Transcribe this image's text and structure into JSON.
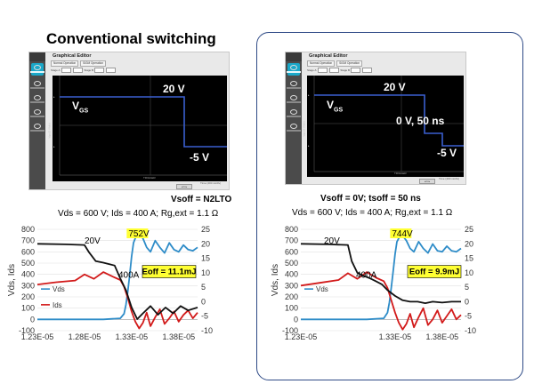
{
  "heading": "Conventional switching",
  "editor": {
    "title": "Graphical Editor",
    "tabs": [
      "Normal Operation",
      "SiGM Operation"
    ],
    "stage_a": "Stage A",
    "stage_b": "Stage B",
    "x_label": "Time (400 ns/div)",
    "y_label": "Vgs (5 V/div)",
    "trigger": "TRIGGER"
  },
  "left": {
    "labels": {
      "high": "20 V",
      "vgs": "V",
      "vgs_sub": "GS",
      "low": "-5 V"
    },
    "desc_line1": "Vsoff = N2LTO",
    "desc_line2": "Vds = 600 V; Ids = 400 A; Rg,ext = 1.1 Ω"
  },
  "right": {
    "labels": {
      "high": "20 V",
      "vgs": "V",
      "vgs_sub": "GS",
      "mid": "0 V, 50 ns",
      "low": "-5 V"
    },
    "desc_line1": "Vsoff = 0V; tsoff = 50 ns",
    "desc_line2": "Vds = 600 V; Ids = 400 A; Rg,ext = 1.1 Ω"
  },
  "colors": {
    "vds": "#2e8cc8",
    "ids": "#d21a1a",
    "vgs": "#111111",
    "highlight": "#ffff33",
    "scope_blue": "#3a5fd0"
  },
  "chart_data": [
    {
      "type": "line",
      "ylabel": "Vds, Ids",
      "y_ticks": [
        800,
        700,
        600,
        500,
        400,
        300,
        200,
        100,
        0,
        -100
      ],
      "y2_ticks": [
        25,
        20,
        15,
        10,
        5,
        0,
        -5,
        -10
      ],
      "x_ticks": [
        "1.23E-05",
        "1.28E-05",
        "1.33E-05",
        "1.38E-05"
      ],
      "ylim": [
        -100,
        800
      ],
      "y2lim": [
        -10,
        25
      ],
      "xlim": [
        1.23e-05,
        1.4e-05
      ],
      "annotations": {
        "vgs_high": "20V",
        "ids": "400A",
        "peak": "752V",
        "energy": "Eoff = 11.1mJ"
      },
      "legend": [
        "Vds",
        "Ids"
      ],
      "series": [
        {
          "name": "Vds",
          "x": [
            1.23e-05,
            1.3e-05,
            1.318e-05,
            1.322e-05,
            1.324e-05,
            1.326e-05,
            1.328e-05,
            1.33e-05,
            1.332e-05,
            1.335e-05,
            1.338e-05,
            1.342e-05,
            1.346e-05,
            1.35e-05,
            1.355e-05,
            1.36e-05,
            1.365e-05,
            1.37e-05,
            1.375e-05,
            1.38e-05,
            1.385e-05,
            1.39e-05,
            1.395e-05,
            1.4e-05
          ],
          "y": [
            0,
            0,
            10,
            50,
            130,
            250,
            400,
            560,
            680,
            745,
            752,
            720,
            640,
            600,
            700,
            640,
            590,
            680,
            620,
            600,
            660,
            620,
            610,
            640
          ]
        },
        {
          "name": "Ids",
          "x": [
            1.23e-05,
            1.25e-05,
            1.27e-05,
            1.28e-05,
            1.29e-05,
            1.3e-05,
            1.31e-05,
            1.318e-05,
            1.322e-05,
            1.326e-05,
            1.33e-05,
            1.334e-05,
            1.338e-05,
            1.342e-05,
            1.346e-05,
            1.35e-05,
            1.355e-05,
            1.36e-05,
            1.365e-05,
            1.37e-05,
            1.375e-05,
            1.38e-05,
            1.385e-05,
            1.39e-05,
            1.395e-05,
            1.4e-05
          ],
          "y": [
            310,
            330,
            345,
            400,
            360,
            420,
            380,
            350,
            290,
            190,
            70,
            -20,
            -80,
            -30,
            60,
            -60,
            20,
            90,
            -40,
            10,
            70,
            -20,
            40,
            80,
            10,
            60
          ]
        },
        {
          "name": "Vgs",
          "axis": "right",
          "x": [
            1.23e-05,
            1.26e-05,
            1.28e-05,
            1.285e-05,
            1.292e-05,
            1.3e-05,
            1.306e-05,
            1.312e-05,
            1.318e-05,
            1.324e-05,
            1.33e-05,
            1.336e-05,
            1.342e-05,
            1.35e-05,
            1.358e-05,
            1.366e-05,
            1.374e-05,
            1.382e-05,
            1.39e-05,
            1.4e-05
          ],
          "y": [
            20,
            19.8,
            19.6,
            17,
            14,
            13.5,
            13,
            12.5,
            8,
            4,
            -2,
            -6,
            -4,
            -1.5,
            -4.5,
            -2,
            -4,
            -1.5,
            -3,
            -2
          ]
        }
      ]
    },
    {
      "type": "line",
      "ylabel": "Vds, Ids",
      "y_ticks": [
        800,
        700,
        600,
        500,
        400,
        300,
        200,
        100,
        0,
        -100
      ],
      "y2_ticks": [
        25,
        20,
        15,
        10,
        5,
        0,
        -5,
        -10
      ],
      "x_ticks": [
        "1.23E-05",
        "1.33E-05",
        "1.38E-05"
      ],
      "ylim": [
        -100,
        800
      ],
      "y2lim": [
        -10,
        25
      ],
      "xlim": [
        1.23e-05,
        1.4e-05
      ],
      "annotations": {
        "vgs_high": "20V",
        "ids": "400A",
        "peak": "744V",
        "energy": "Eoff = 9.9mJ"
      },
      "legend": [
        "Vds"
      ],
      "series": [
        {
          "name": "Vds",
          "x": [
            1.23e-05,
            1.3e-05,
            1.318e-05,
            1.322e-05,
            1.324e-05,
            1.326e-05,
            1.328e-05,
            1.33e-05,
            1.332e-05,
            1.335e-05,
            1.338e-05,
            1.342e-05,
            1.346e-05,
            1.35e-05,
            1.355e-05,
            1.36e-05,
            1.365e-05,
            1.37e-05,
            1.375e-05,
            1.38e-05,
            1.385e-05,
            1.39e-05,
            1.395e-05,
            1.4e-05
          ],
          "y": [
            0,
            0,
            10,
            60,
            150,
            280,
            430,
            580,
            690,
            738,
            744,
            700,
            630,
            600,
            690,
            630,
            590,
            670,
            610,
            600,
            650,
            610,
            600,
            630
          ]
        },
        {
          "name": "Ids",
          "x": [
            1.23e-05,
            1.25e-05,
            1.27e-05,
            1.28e-05,
            1.29e-05,
            1.3e-05,
            1.31e-05,
            1.318e-05,
            1.322e-05,
            1.326e-05,
            1.33e-05,
            1.334e-05,
            1.338e-05,
            1.342e-05,
            1.346e-05,
            1.35e-05,
            1.355e-05,
            1.36e-05,
            1.365e-05,
            1.37e-05,
            1.375e-05,
            1.38e-05,
            1.385e-05,
            1.39e-05,
            1.395e-05,
            1.4e-05
          ],
          "y": [
            300,
            325,
            350,
            410,
            360,
            420,
            370,
            340,
            280,
            170,
            60,
            -30,
            -90,
            -40,
            50,
            -70,
            20,
            100,
            -50,
            0,
            80,
            -30,
            30,
            90,
            0,
            40
          ]
        },
        {
          "name": "Vgs",
          "axis": "right",
          "x": [
            1.23e-05,
            1.26e-05,
            1.28e-05,
            1.284e-05,
            1.29e-05,
            1.296e-05,
            1.3e-05,
            1.304e-05,
            1.31e-05,
            1.316e-05,
            1.322e-05,
            1.33e-05,
            1.338e-05,
            1.346e-05,
            1.354e-05,
            1.362e-05,
            1.37e-05,
            1.38e-05,
            1.39e-05,
            1.4e-05
          ],
          "y": [
            20,
            19.8,
            19.6,
            14,
            10,
            9,
            8.5,
            8,
            7,
            6,
            4,
            2,
            0.5,
            0,
            0,
            -0.5,
            0,
            -0.3,
            0,
            0
          ]
        }
      ]
    }
  ]
}
